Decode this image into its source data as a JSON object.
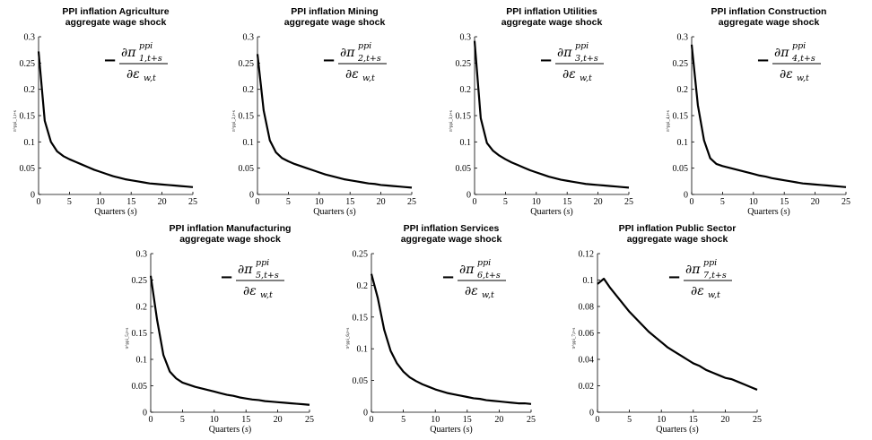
{
  "chart_data": [
    {
      "type": "line",
      "title": [
        "PPI inflation Agriculture",
        "aggregate wage shock"
      ],
      "xlabel": "Quarters (s)",
      "ylabel": "π^ppi_1,t+s",
      "annotation": {
        "minus": "−",
        "numerator": "∂π",
        "num_sup": "ppi",
        "num_sub": "1,t+s",
        "denominator": "∂ε",
        "den_sub": "w,t"
      },
      "xlim": [
        0,
        25
      ],
      "ylim": [
        0,
        0.3
      ],
      "xticks": [
        0,
        5,
        10,
        15,
        20,
        25
      ],
      "yticks": [
        0,
        0.05,
        0.1,
        0.15,
        0.2,
        0.25,
        0.3
      ],
      "ytick_labels": [
        "0",
        "0.05",
        "0.1",
        "0.15",
        "0.2",
        "0.25",
        "0.3"
      ],
      "series": [
        {
          "x": [
            0,
            1,
            2,
            3,
            4,
            5,
            6,
            7,
            8,
            9,
            10,
            11,
            12,
            13,
            14,
            15,
            16,
            17,
            18,
            19,
            20,
            21,
            22,
            23,
            24,
            25
          ],
          "values": [
            0.272,
            0.14,
            0.1,
            0.082,
            0.073,
            0.067,
            0.062,
            0.057,
            0.052,
            0.047,
            0.043,
            0.039,
            0.035,
            0.032,
            0.029,
            0.027,
            0.025,
            0.023,
            0.021,
            0.02,
            0.019,
            0.018,
            0.017,
            0.016,
            0.015,
            0.014
          ]
        }
      ]
    },
    {
      "type": "line",
      "title": [
        "PPI inflation Mining",
        "aggregate wage shock"
      ],
      "xlabel": "Quarters (s)",
      "ylabel": "π^ppi_2,t+s",
      "annotation": {
        "minus": "−",
        "numerator": "∂π",
        "num_sup": "ppi",
        "num_sub": "2,t+s",
        "denominator": "∂ε",
        "den_sub": "w,t"
      },
      "xlim": [
        0,
        25
      ],
      "ylim": [
        0,
        0.3
      ],
      "xticks": [
        0,
        5,
        10,
        15,
        20,
        25
      ],
      "yticks": [
        0,
        0.05,
        0.1,
        0.15,
        0.2,
        0.25,
        0.3
      ],
      "ytick_labels": [
        "0",
        "0.05",
        "0.1",
        "0.15",
        "0.2",
        "0.25",
        "0.3"
      ],
      "series": [
        {
          "x": [
            0,
            1,
            2,
            3,
            4,
            5,
            6,
            7,
            8,
            9,
            10,
            11,
            12,
            13,
            14,
            15,
            16,
            17,
            18,
            19,
            20,
            21,
            22,
            23,
            24,
            25
          ],
          "values": [
            0.267,
            0.16,
            0.103,
            0.08,
            0.069,
            0.063,
            0.058,
            0.054,
            0.05,
            0.046,
            0.042,
            0.038,
            0.035,
            0.032,
            0.029,
            0.027,
            0.025,
            0.023,
            0.021,
            0.02,
            0.018,
            0.017,
            0.016,
            0.015,
            0.014,
            0.013
          ]
        }
      ]
    },
    {
      "type": "line",
      "title": [
        "PPI inflation Utilities",
        "aggregate wage shock"
      ],
      "xlabel": "Quarters (s)",
      "ylabel": "π^ppi_3,t+s",
      "annotation": {
        "minus": "−",
        "numerator": "∂π",
        "num_sup": "ppi",
        "num_sub": "3,t+s",
        "denominator": "∂ε",
        "den_sub": "w,t"
      },
      "xlim": [
        0,
        25
      ],
      "ylim": [
        0,
        0.3
      ],
      "xticks": [
        0,
        5,
        10,
        15,
        20,
        25
      ],
      "yticks": [
        0,
        0.05,
        0.1,
        0.15,
        0.2,
        0.25,
        0.3
      ],
      "ytick_labels": [
        "0",
        "0.05",
        "0.1",
        "0.15",
        "0.2",
        "0.25",
        "0.3"
      ],
      "series": [
        {
          "x": [
            0,
            1,
            2,
            3,
            4,
            5,
            6,
            7,
            8,
            9,
            10,
            11,
            12,
            13,
            14,
            15,
            16,
            17,
            18,
            19,
            20,
            21,
            22,
            23,
            24,
            25
          ],
          "values": [
            0.292,
            0.145,
            0.098,
            0.083,
            0.074,
            0.067,
            0.061,
            0.056,
            0.051,
            0.046,
            0.042,
            0.038,
            0.034,
            0.031,
            0.028,
            0.026,
            0.024,
            0.022,
            0.02,
            0.019,
            0.018,
            0.017,
            0.016,
            0.015,
            0.014,
            0.013
          ]
        }
      ]
    },
    {
      "type": "line",
      "title": [
        "PPI inflation Construction",
        "aggregate wage shock"
      ],
      "xlabel": "Quarters (s)",
      "ylabel": "π^ppi_4,t+s",
      "annotation": {
        "minus": "−",
        "numerator": "∂π",
        "num_sup": "ppi",
        "num_sub": "4,t+s",
        "denominator": "∂ε",
        "den_sub": "w,t"
      },
      "xlim": [
        0,
        25
      ],
      "ylim": [
        0,
        0.3
      ],
      "xticks": [
        0,
        5,
        10,
        15,
        20,
        25
      ],
      "yticks": [
        0,
        0.05,
        0.1,
        0.15,
        0.2,
        0.25,
        0.3
      ],
      "ytick_labels": [
        "0",
        "0.05",
        "0.1",
        "0.15",
        "0.2",
        "0.25",
        "0.3"
      ],
      "series": [
        {
          "x": [
            0,
            1,
            2,
            3,
            4,
            5,
            6,
            7,
            8,
            9,
            10,
            11,
            12,
            13,
            14,
            15,
            16,
            17,
            18,
            19,
            20,
            21,
            22,
            23,
            24,
            25
          ],
          "values": [
            0.285,
            0.17,
            0.103,
            0.069,
            0.058,
            0.054,
            0.051,
            0.048,
            0.045,
            0.042,
            0.039,
            0.036,
            0.034,
            0.031,
            0.029,
            0.027,
            0.025,
            0.023,
            0.021,
            0.02,
            0.019,
            0.018,
            0.017,
            0.016,
            0.015,
            0.014
          ]
        }
      ]
    },
    {
      "type": "line",
      "title": [
        "PPI inflation Manufacturing",
        "aggregate wage shock"
      ],
      "xlabel": "Quarters (s)",
      "ylabel": "π^ppi_5,t+s",
      "annotation": {
        "minus": "−",
        "numerator": "∂π",
        "num_sup": "ppi",
        "num_sub": "5,t+s",
        "denominator": "∂ε",
        "den_sub": "w,t"
      },
      "xlim": [
        0,
        25
      ],
      "ylim": [
        0,
        0.3
      ],
      "xticks": [
        0,
        5,
        10,
        15,
        20,
        25
      ],
      "yticks": [
        0,
        0.05,
        0.1,
        0.15,
        0.2,
        0.25,
        0.3
      ],
      "ytick_labels": [
        "0",
        "0.05",
        "0.1",
        "0.15",
        "0.2",
        "0.25",
        "0.3"
      ],
      "series": [
        {
          "x": [
            0,
            1,
            2,
            3,
            4,
            5,
            6,
            7,
            8,
            9,
            10,
            11,
            12,
            13,
            14,
            15,
            16,
            17,
            18,
            19,
            20,
            21,
            22,
            23,
            24,
            25
          ],
          "values": [
            0.258,
            0.175,
            0.108,
            0.077,
            0.064,
            0.056,
            0.052,
            0.048,
            0.045,
            0.042,
            0.039,
            0.036,
            0.033,
            0.031,
            0.028,
            0.026,
            0.024,
            0.023,
            0.021,
            0.02,
            0.019,
            0.018,
            0.017,
            0.016,
            0.015,
            0.014
          ]
        }
      ]
    },
    {
      "type": "line",
      "title": [
        "PPI inflation Services",
        "aggregate wage shock"
      ],
      "xlabel": "Quarters (s)",
      "ylabel": "π^ppi_6,t+s",
      "annotation": {
        "minus": "−",
        "numerator": "∂π",
        "num_sup": "ppi",
        "num_sub": "6,t+s",
        "denominator": "∂ε",
        "den_sub": "w,t"
      },
      "xlim": [
        0,
        25
      ],
      "ylim": [
        0,
        0.25
      ],
      "xticks": [
        0,
        5,
        10,
        15,
        20,
        25
      ],
      "yticks": [
        0,
        0.05,
        0.1,
        0.15,
        0.2,
        0.25
      ],
      "ytick_labels": [
        "0",
        "0.05",
        "0.1",
        "0.15",
        "0.2",
        "0.25"
      ],
      "series": [
        {
          "x": [
            0,
            1,
            2,
            3,
            4,
            5,
            6,
            7,
            8,
            9,
            10,
            11,
            12,
            13,
            14,
            15,
            16,
            17,
            18,
            19,
            20,
            21,
            22,
            23,
            24,
            25
          ],
          "values": [
            0.218,
            0.18,
            0.13,
            0.097,
            0.077,
            0.064,
            0.055,
            0.049,
            0.044,
            0.04,
            0.036,
            0.033,
            0.03,
            0.028,
            0.026,
            0.024,
            0.022,
            0.021,
            0.019,
            0.018,
            0.017,
            0.016,
            0.015,
            0.014,
            0.014,
            0.013
          ]
        }
      ]
    },
    {
      "type": "line",
      "title": [
        "PPI inflation Public Sector",
        "aggregate wage shock"
      ],
      "xlabel": "Quarters (s)",
      "ylabel": "π^ppi_7,t+s",
      "annotation": {
        "minus": "−",
        "numerator": "∂π",
        "num_sup": "ppi",
        "num_sub": "7,t+s",
        "denominator": "∂ε",
        "den_sub": "w,t"
      },
      "xlim": [
        0,
        25
      ],
      "ylim": [
        0,
        0.12
      ],
      "xticks": [
        0,
        5,
        10,
        15,
        20,
        25
      ],
      "yticks": [
        0,
        0.02,
        0.04,
        0.06,
        0.08,
        0.1,
        0.12
      ],
      "ytick_labels": [
        "0",
        "0.02",
        "0.04",
        "0.06",
        "0.08",
        "0.1",
        "0.12"
      ],
      "series": [
        {
          "x": [
            0,
            1,
            2,
            3,
            4,
            5,
            6,
            7,
            8,
            9,
            10,
            11,
            12,
            13,
            14,
            15,
            16,
            17,
            18,
            19,
            20,
            21,
            22,
            23,
            24,
            25
          ],
          "values": [
            0.097,
            0.101,
            0.094,
            0.088,
            0.082,
            0.076,
            0.071,
            0.066,
            0.061,
            0.057,
            0.053,
            0.049,
            0.046,
            0.043,
            0.04,
            0.037,
            0.035,
            0.032,
            0.03,
            0.028,
            0.026,
            0.025,
            0.023,
            0.021,
            0.019,
            0.017
          ]
        }
      ]
    }
  ]
}
